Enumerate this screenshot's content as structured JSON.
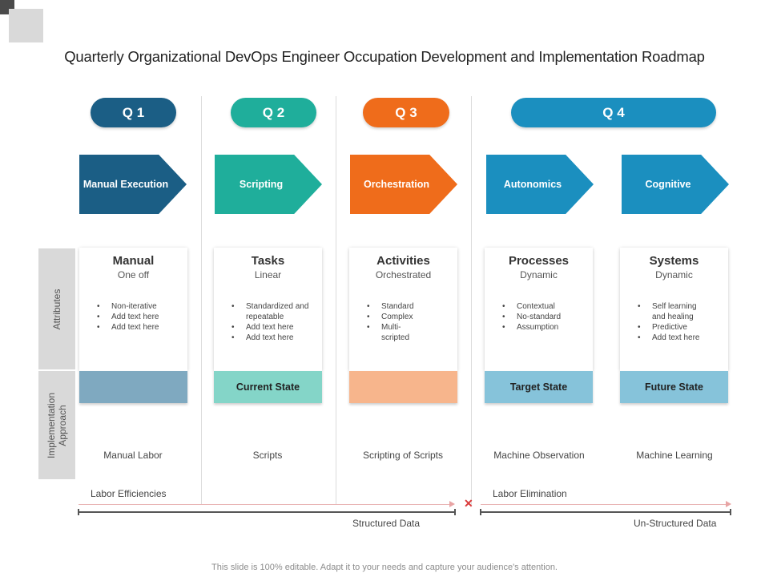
{
  "title": "Quarterly Organizational DevOps Engineer Occupation Development and Implementation Roadmap",
  "footer": "This slide is 100% editable. Adapt it to your needs and capture your audience's attention.",
  "side_labels": {
    "attributes": "Attributes",
    "implementation": "Implementation Approach"
  },
  "quarters": [
    {
      "label": "Q 1",
      "color": "#1b5e85"
    },
    {
      "label": "Q 2",
      "color": "#1fae9b"
    },
    {
      "label": "Q 3",
      "color": "#ef6c1b"
    },
    {
      "label": "Q 4",
      "color": "#1b8fbf"
    }
  ],
  "stages": [
    {
      "arrow": "Manual Execution",
      "arrow_color": "#1b5e85",
      "title": "Manual",
      "subtitle": "One off",
      "bullets": [
        "Non-iterative",
        "Add text here",
        "Add text here"
      ],
      "state": "",
      "state_color": "#7fa9c0",
      "approach": "Manual Labor"
    },
    {
      "arrow": "Scripting",
      "arrow_color": "#1fae9b",
      "title": "Tasks",
      "subtitle": "Linear",
      "bullets": [
        "Standardized and repeatable",
        "Add text here",
        "Add text here"
      ],
      "state": "Current State",
      "state_color": "#84d5c8",
      "approach": "Scripts"
    },
    {
      "arrow": "Orchestration",
      "arrow_color": "#ef6c1b",
      "title": "Activities",
      "subtitle": "Orchestrated",
      "bullets": [
        "Standard",
        "Complex",
        "Multi-scripted"
      ],
      "state": "",
      "state_color": "#f7b58c",
      "approach": "Scripting of Scripts"
    },
    {
      "arrow": "Autonomics",
      "arrow_color": "#1b8fbf",
      "title": "Processes",
      "subtitle": "Dynamic",
      "bullets": [
        "Contextual",
        "No-standard",
        "Assumption"
      ],
      "state": "Target State",
      "state_color": "#86c3da",
      "approach": "Machine Observation"
    },
    {
      "arrow": "Cognitive",
      "arrow_color": "#1b8fbf",
      "title": "Systems",
      "subtitle": "Dynamic",
      "bullets": [
        "Self learning and healing",
        "Predictive",
        "Add text here"
      ],
      "state": "Future State",
      "state_color": "#86c3da",
      "approach": "Machine Learning"
    }
  ],
  "bottom": {
    "labor_efficiencies": "Labor Efficiencies",
    "labor_elimination": "Labor Elimination",
    "structured_data": "Structured Data",
    "unstructured_data": "Un-Structured Data"
  }
}
